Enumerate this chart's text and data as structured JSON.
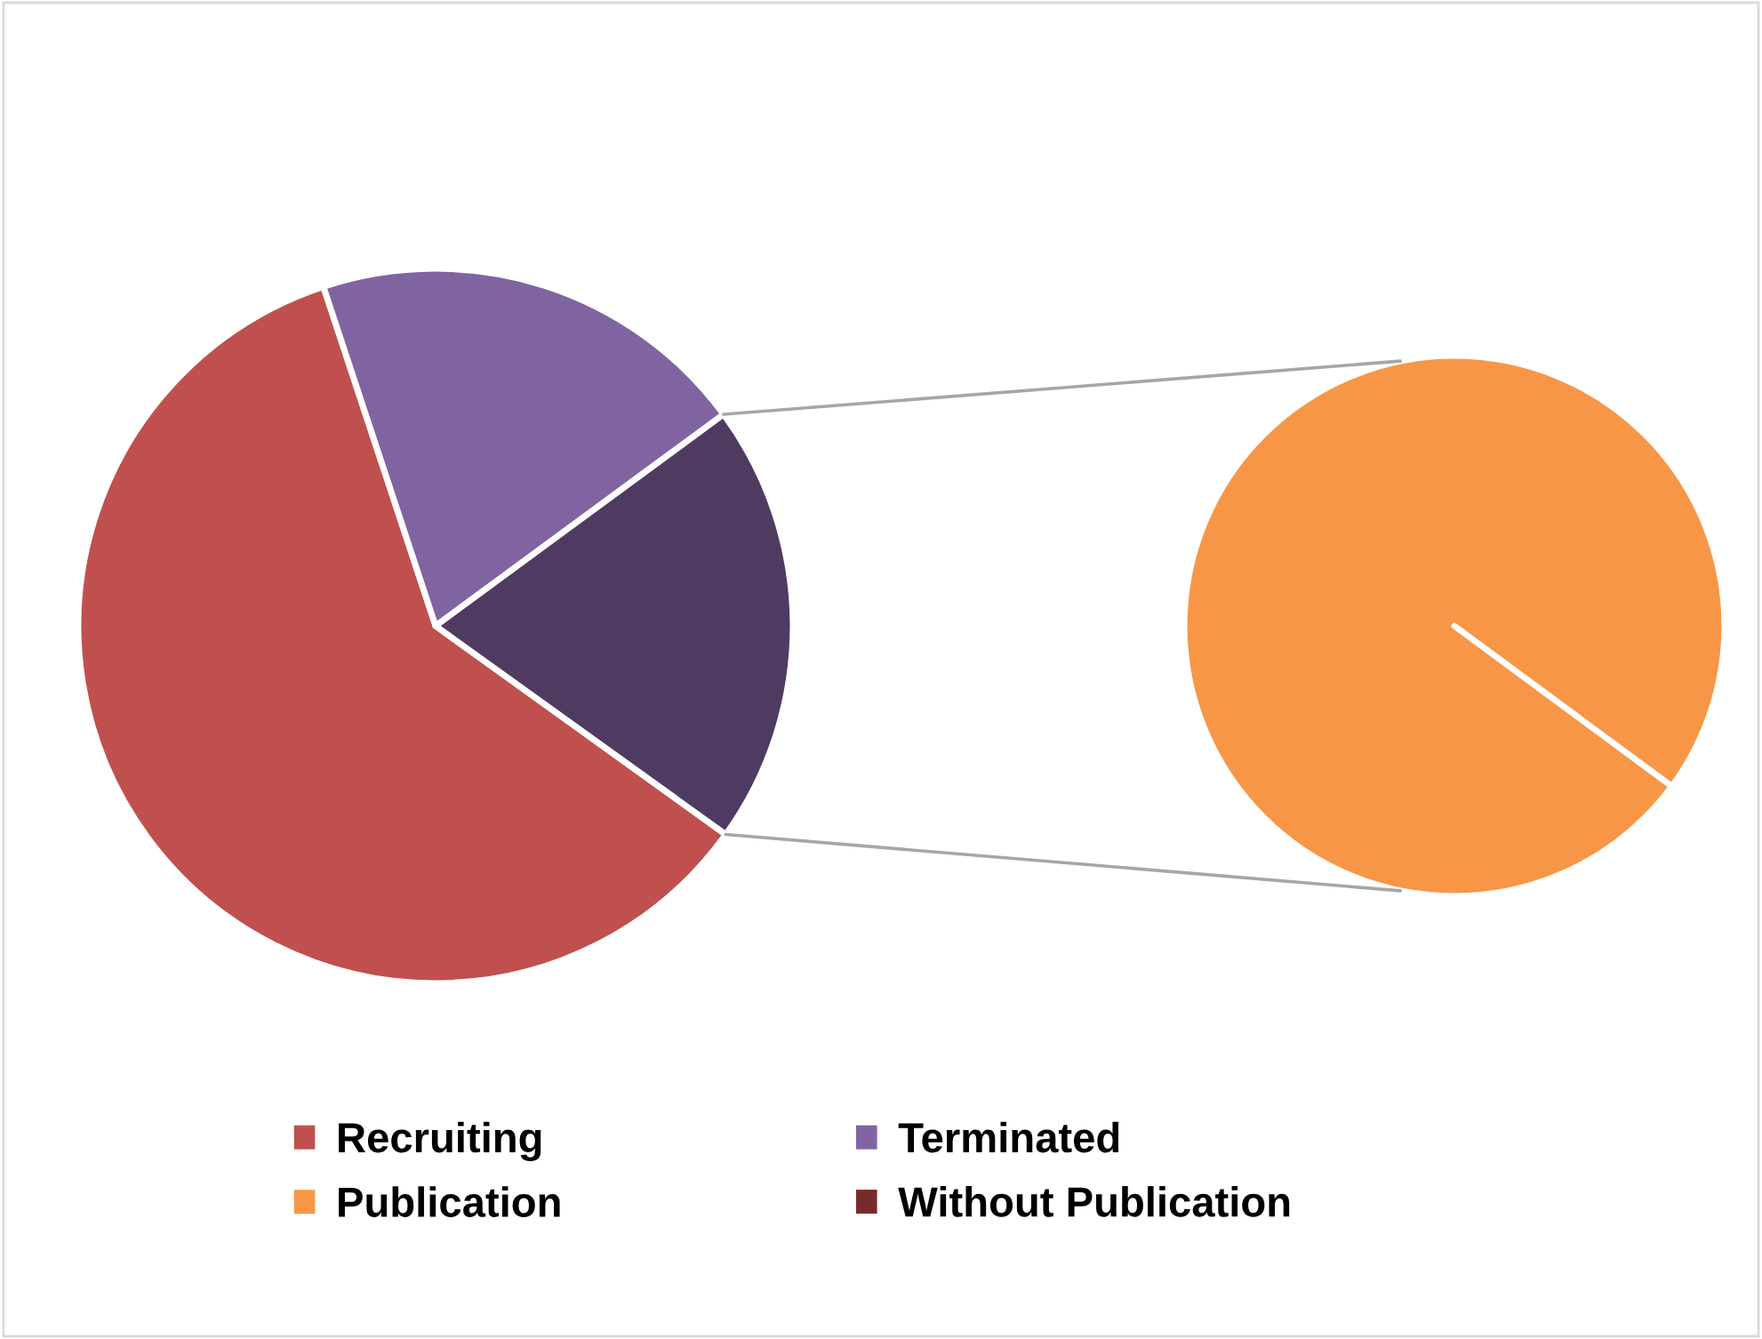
{
  "chart_data": [
    {
      "type": "pie",
      "categories": [
        "Recruiting",
        "Terminated",
        null
      ],
      "values": [
        60,
        20,
        20
      ],
      "colors": [
        "#c0504d",
        "#8064a2",
        "#4f3b62"
      ],
      "legend": "bottom"
    },
    {
      "type": "pie",
      "categories": [
        "Publication",
        "Without Publication"
      ],
      "values": [
        100,
        0
      ],
      "colors": [
        "#f79646",
        "#772c2a"
      ],
      "legend": "bottom"
    }
  ]
}
